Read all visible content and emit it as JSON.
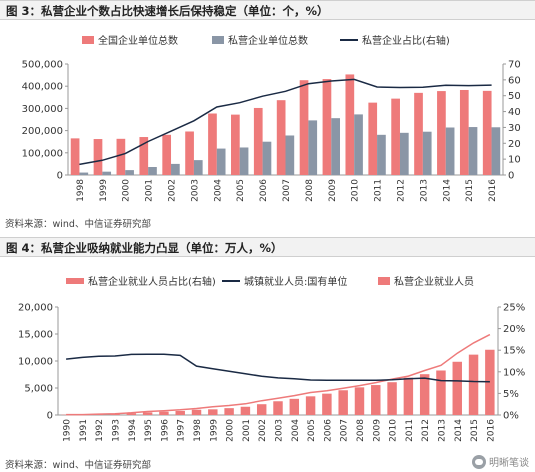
{
  "chart_data": [
    {
      "type": "bar",
      "title": "图 3：私营企业个数占比快速增长后保持稳定（单位：个，%）",
      "source": "资料来源：wind、中信证券研究部",
      "categories": [
        "1998",
        "1999",
        "2000",
        "2001",
        "2002",
        "2003",
        "2004",
        "2005",
        "2006",
        "2007",
        "2008",
        "2009",
        "2010",
        "2011",
        "2012",
        "2013",
        "2014",
        "2015",
        "2016"
      ],
      "series": [
        {
          "name": "全国企业单位总数",
          "kind": "bar",
          "axis": "left",
          "color": "#ee7a7a",
          "values": [
            165000,
            162000,
            163000,
            171000,
            181000,
            196000,
            277000,
            272000,
            302000,
            337000,
            427000,
            432000,
            453000,
            326000,
            344000,
            370000,
            378000,
            383000,
            379000
          ]
        },
        {
          "name": "私营企业单位总数",
          "kind": "bar",
          "axis": "left",
          "color": "#8a96a6",
          "values": [
            11000,
            15000,
            22000,
            36000,
            50000,
            67000,
            119000,
            124000,
            150000,
            178000,
            246000,
            256000,
            273000,
            181000,
            190000,
            195000,
            214000,
            216000,
            215000
          ]
        },
        {
          "name": "私营企业占比(右轴)",
          "kind": "line",
          "axis": "right",
          "color": "#1a2a44",
          "values": [
            6.7,
            9.3,
            13.5,
            21.1,
            27.6,
            34.2,
            42.9,
            45.6,
            49.7,
            52.8,
            57.6,
            59.3,
            60.3,
            55.5,
            55.2,
            55.4,
            56.6,
            56.4,
            56.7
          ]
        }
      ],
      "ylim_left": [
        0,
        500000
      ],
      "yticks_left": [
        "0",
        "100,000",
        "200,000",
        "300,000",
        "400,000",
        "500,000"
      ],
      "ylim_right": [
        0,
        70
      ],
      "yticks_right": [
        "0",
        "10",
        "20",
        "30",
        "40",
        "50",
        "60",
        "70"
      ],
      "legend": "top"
    },
    {
      "type": "bar",
      "title": "图 4：私营企业吸纳就业能力凸显（单位：万人，%）",
      "source": "资料来源：wind、中信证券研究部",
      "categories": [
        "1990",
        "1991",
        "1992",
        "1993",
        "1994",
        "1995",
        "1996",
        "1997",
        "1998",
        "1999",
        "2000",
        "2001",
        "2002",
        "2003",
        "2004",
        "2005",
        "2006",
        "2007",
        "2008",
        "2009",
        "2010",
        "2011",
        "2012",
        "2013",
        "2014",
        "2015",
        "2016"
      ],
      "series": [
        {
          "name": "私营企业就业人员占比(右轴)",
          "kind": "line",
          "axis": "right",
          "color": "#ee7a7a",
          "values": [
            0.1,
            0.1,
            0.2,
            0.3,
            0.5,
            0.8,
            1.0,
            1.2,
            1.5,
            1.9,
            2.2,
            2.6,
            3.3,
            3.9,
            4.5,
            5.2,
            5.6,
            6.2,
            6.8,
            7.5,
            8.3,
            9.0,
            10.3,
            11.5,
            14.3,
            16.7,
            18.6
          ]
        },
        {
          "name": "城镇就业人员:国有单位",
          "kind": "line",
          "axis": "left",
          "color": "#1a2a44",
          "values": [
            10346,
            10664,
            10889,
            10920,
            11214,
            11261,
            11244,
            11044,
            9058,
            8572,
            8102,
            7640,
            7163,
            6876,
            6710,
            6488,
            6430,
            6424,
            6447,
            6420,
            6516,
            6704,
            6839,
            6365,
            6312,
            6208,
            6170
          ]
        },
        {
          "name": "私营企业就业人员",
          "kind": "bar",
          "axis": "left",
          "color": "#ee7a7a",
          "values": [
            57,
            68,
            98,
            186,
            332,
            485,
            620,
            750,
            973,
            1053,
            1268,
            1527,
            1999,
            2545,
            2994,
            3458,
            3954,
            4581,
            5124,
            5544,
            6071,
            6912,
            7557,
            8242,
            9857,
            11180,
            12083
          ]
        }
      ],
      "ylim_left": [
        0,
        20000
      ],
      "yticks_left": [
        "0",
        "5,000",
        "10,000",
        "15,000",
        "20,000"
      ],
      "ylim_right": [
        0,
        25
      ],
      "yticks_right": [
        "0%",
        "5%",
        "10%",
        "15%",
        "20%",
        "25%"
      ],
      "legend": "top"
    }
  ],
  "watermark": "明晰笔谈",
  "watermark_icon": "wechat-icon"
}
